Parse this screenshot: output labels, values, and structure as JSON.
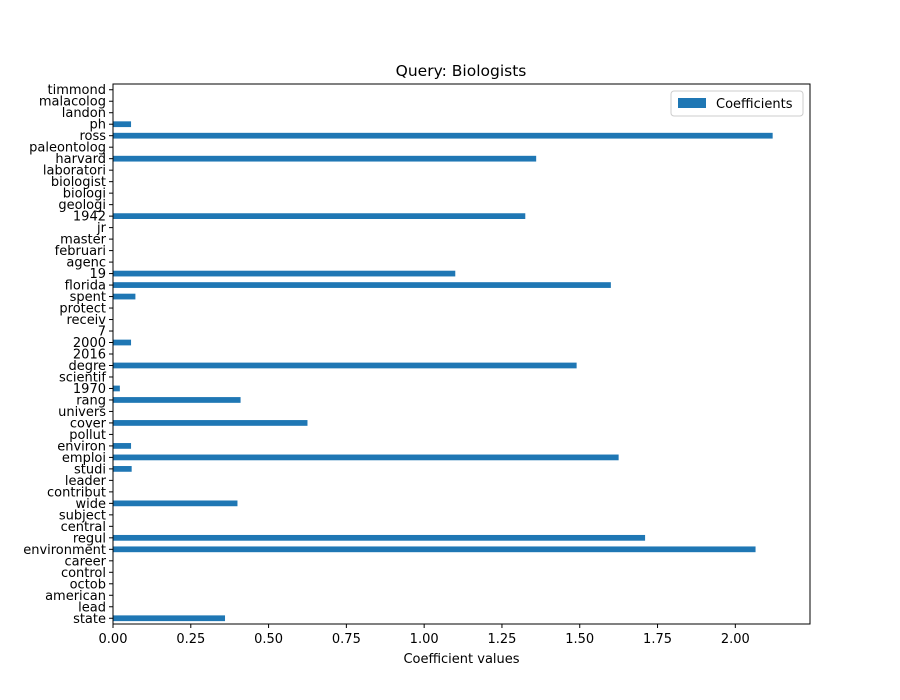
{
  "chart_data": {
    "type": "bar",
    "orientation": "horizontal",
    "title": "Query: Biologists",
    "xlabel": "Coefficient values",
    "ylabel": "",
    "xlim": [
      0,
      2.24
    ],
    "xticks": [
      "0.00",
      "0.25",
      "0.50",
      "0.75",
      "1.00",
      "1.25",
      "1.50",
      "1.75",
      "2.00"
    ],
    "grid": false,
    "legend_position": "top-right",
    "bar_color": "#1f77b4",
    "categories": [
      "state",
      "lead",
      "american",
      "octob",
      "control",
      "career",
      "environment",
      "regul",
      "central",
      "subject",
      "wide",
      "contribut",
      "leader",
      "studi",
      "emploi",
      "environ",
      "pollut",
      "cover",
      "univers",
      "rang",
      "1970",
      "scientif",
      "degre",
      "2016",
      "2000",
      "7",
      "receiv",
      "protect",
      "spent",
      "florida",
      "19",
      "agenc",
      "februari",
      "master",
      "jr",
      "1942",
      "geologi",
      "biologi",
      "biologist",
      "laboratori",
      "harvard",
      "paleontolog",
      "ross",
      "ph",
      "landon",
      "malacolog",
      "timmond"
    ],
    "series": [
      {
        "name": "Coefficients",
        "values": [
          0.36,
          0,
          0,
          0,
          0,
          0,
          2.065,
          1.71,
          0,
          0,
          0.4,
          0,
          0,
          0.06,
          1.625,
          0.058,
          0,
          0.625,
          0,
          0.41,
          0.022,
          0,
          1.49,
          0,
          0.058,
          0,
          0,
          0,
          0.072,
          1.6,
          1.1,
          0,
          0,
          0,
          0,
          1.325,
          0,
          0,
          0,
          0,
          1.36,
          0,
          2.12,
          0.058,
          0,
          0,
          0
        ]
      }
    ]
  }
}
